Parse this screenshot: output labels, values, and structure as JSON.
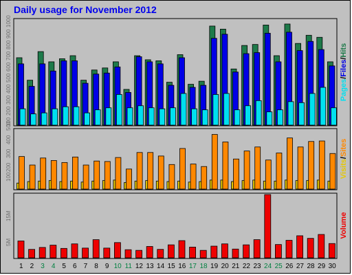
{
  "title": "Daily usage for November 2012",
  "colors": {
    "hits": "#1e7a4a",
    "files": "#0000e6",
    "pages": "#00e0f0",
    "visits": "#e6c800",
    "sites": "#ff8800",
    "volume": "#ee0000",
    "weekday_label": "#000000",
    "weekend_label": "#008040"
  },
  "side_labels": {
    "top": [
      "Pages",
      "/",
      "Files",
      "/",
      "Hits"
    ],
    "middle": [
      "Visits",
      "/",
      "Sites"
    ],
    "bottom": [
      "Volume"
    ]
  },
  "chart_data": [
    {
      "type": "bar",
      "panel": "hits-files-pages",
      "categories": [
        "1",
        "2",
        "3",
        "4",
        "5",
        "6",
        "7",
        "8",
        "9",
        "10",
        "11",
        "12",
        "13",
        "14",
        "15",
        "16",
        "17",
        "18",
        "19",
        "20",
        "21",
        "22",
        "23",
        "24",
        "25",
        "26",
        "27",
        "28",
        "29",
        "30"
      ],
      "weekend_days": [
        "3",
        "4",
        "10",
        "11",
        "17",
        "18",
        "24",
        "25"
      ],
      "ytick_labels": [
        "1000",
        "900",
        "800",
        "700",
        "600",
        "500",
        "400",
        "300",
        "200",
        "100"
      ],
      "ylim": [
        0,
        1030
      ],
      "series": [
        {
          "name": "Hits",
          "values": [
            660,
            440,
            720,
            620,
            650,
            680,
            440,
            540,
            560,
            620,
            350,
            680,
            640,
            630,
            420,
            690,
            400,
            430,
            970,
            940,
            550,
            780,
            790,
            980,
            680,
            990,
            800,
            880,
            860,
            620
          ]
        },
        {
          "name": "Files",
          "values": [
            600,
            380,
            600,
            530,
            630,
            630,
            410,
            500,
            510,
            570,
            320,
            670,
            620,
            600,
            390,
            660,
            370,
            390,
            850,
            890,
            520,
            700,
            710,
            900,
            620,
            910,
            730,
            820,
            740,
            580
          ]
        },
        {
          "name": "Pages",
          "values": [
            160,
            110,
            120,
            160,
            180,
            180,
            120,
            150,
            170,
            300,
            170,
            190,
            170,
            160,
            170,
            310,
            160,
            150,
            300,
            310,
            150,
            190,
            240,
            130,
            150,
            230,
            220,
            310,
            370,
            170
          ]
        }
      ]
    },
    {
      "type": "bar",
      "panel": "visits-sites",
      "categories": [
        "1",
        "2",
        "3",
        "4",
        "5",
        "6",
        "7",
        "8",
        "9",
        "10",
        "11",
        "12",
        "13",
        "14",
        "15",
        "16",
        "17",
        "18",
        "19",
        "20",
        "21",
        "22",
        "23",
        "24",
        "25",
        "26",
        "27",
        "28",
        "29",
        "30"
      ],
      "ytick_labels": [
        "500",
        "400",
        "300",
        "200",
        "100"
      ],
      "ylim": [
        0,
        590
      ],
      "series": [
        {
          "name": "Visits",
          "values": [
            60,
            75,
            80,
            85,
            75,
            80,
            70,
            80,
            85,
            90,
            65,
            80,
            85,
            80,
            75,
            80,
            70,
            75,
            90,
            90,
            75,
            85,
            90,
            80,
            80,
            90,
            85,
            85,
            90,
            80
          ]
        },
        {
          "name": "Sites",
          "values": [
            325,
            240,
            310,
            285,
            265,
            320,
            240,
            280,
            275,
            315,
            200,
            365,
            365,
            330,
            245,
            405,
            250,
            225,
            545,
            470,
            300,
            380,
            420,
            290,
            360,
            510,
            420,
            475,
            480,
            355
          ]
        }
      ]
    },
    {
      "type": "bar",
      "panel": "volume",
      "categories": [
        "1",
        "2",
        "3",
        "4",
        "5",
        "6",
        "7",
        "8",
        "9",
        "10",
        "11",
        "12",
        "13",
        "14",
        "15",
        "16",
        "17",
        "18",
        "19",
        "20",
        "21",
        "22",
        "23",
        "24",
        "25",
        "26",
        "27",
        "28",
        "29",
        "30"
      ],
      "ytick_labels": [
        "15M",
        "5M"
      ],
      "ylim": [
        0,
        19500000
      ],
      "series": [
        {
          "name": "Volume",
          "values": [
            5200000,
            2600000,
            3200000,
            3900000,
            2900000,
            4300000,
            3000000,
            5600000,
            3000000,
            4700000,
            2500000,
            2300000,
            3500000,
            2600000,
            4000000,
            5300000,
            3300000,
            2300000,
            3600000,
            4300000,
            2700000,
            4000000,
            5600000,
            19500000,
            4100000,
            5400000,
            6800000,
            6000000,
            7200000,
            4400000
          ]
        }
      ]
    }
  ]
}
